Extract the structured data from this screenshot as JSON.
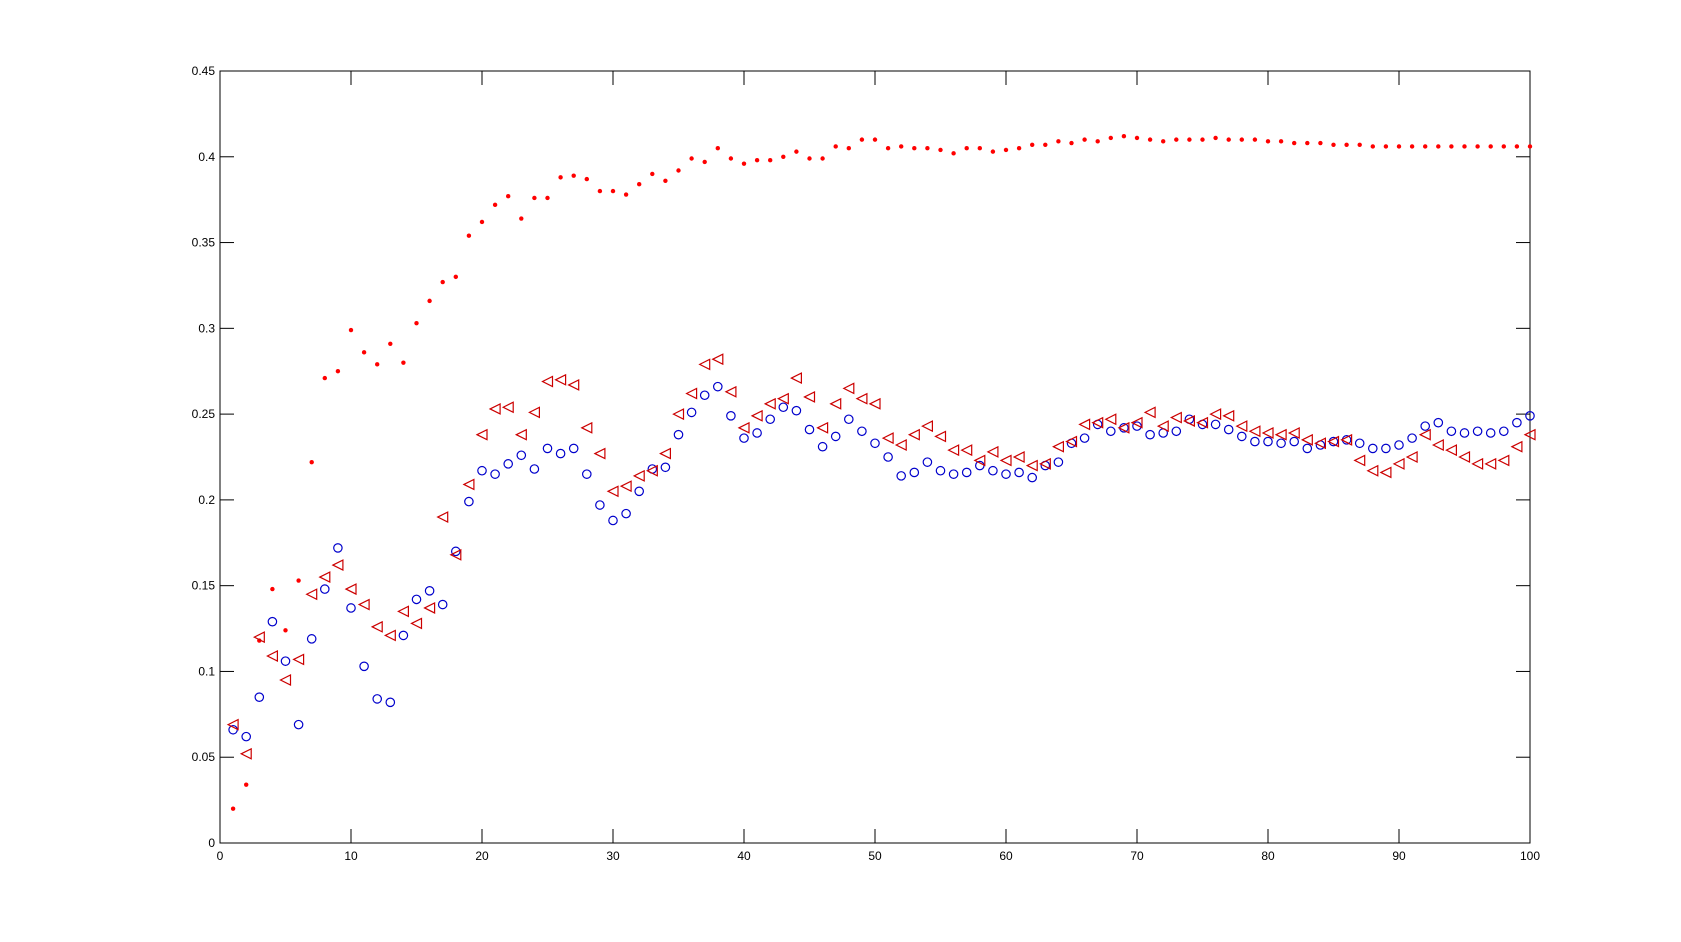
{
  "chart_data": {
    "type": "scatter",
    "title": "",
    "xlabel": "",
    "ylabel": "",
    "xlim": [
      0,
      100
    ],
    "ylim": [
      0,
      0.45
    ],
    "x_ticks": [
      0,
      10,
      20,
      30,
      40,
      50,
      60,
      70,
      80,
      90,
      100
    ],
    "x_tick_labels": [
      "0",
      "10",
      "20",
      "30",
      "40",
      "50",
      "60",
      "70",
      "80",
      "90",
      "100"
    ],
    "y_ticks": [
      0,
      0.05,
      0.1,
      0.15,
      0.2,
      0.25,
      0.3,
      0.35,
      0.4,
      0.45
    ],
    "y_tick_labels": [
      "0",
      "0.05",
      "0.1",
      "0.15",
      "0.2",
      "0.25",
      "0.3",
      "0.35",
      "0.4",
      "0.45"
    ],
    "grid": false,
    "legend": "none",
    "x": [
      1,
      2,
      3,
      4,
      5,
      6,
      7,
      8,
      9,
      10,
      11,
      12,
      13,
      14,
      15,
      16,
      17,
      18,
      19,
      20,
      21,
      22,
      23,
      24,
      25,
      26,
      27,
      28,
      29,
      30,
      31,
      32,
      33,
      34,
      35,
      36,
      37,
      38,
      39,
      40,
      41,
      42,
      43,
      44,
      45,
      46,
      47,
      48,
      49,
      50,
      51,
      52,
      53,
      54,
      55,
      56,
      57,
      58,
      59,
      60,
      61,
      62,
      63,
      64,
      65,
      66,
      67,
      68,
      69,
      70,
      71,
      72,
      73,
      74,
      75,
      76,
      77,
      78,
      79,
      80,
      81,
      82,
      83,
      84,
      85,
      86,
      87,
      88,
      89,
      90,
      91,
      92,
      93,
      94,
      95,
      96,
      97,
      98,
      99,
      100
    ],
    "series": [
      {
        "marker": "dot",
        "color": "#ff0000",
        "values": [
          0.02,
          0.034,
          0.118,
          0.148,
          0.124,
          0.153,
          0.222,
          0.271,
          0.275,
          0.299,
          0.286,
          0.279,
          0.291,
          0.28,
          0.303,
          0.316,
          0.327,
          0.33,
          0.354,
          0.362,
          0.372,
          0.377,
          0.364,
          0.376,
          0.376,
          0.388,
          0.389,
          0.387,
          0.38,
          0.38,
          0.378,
          0.384,
          0.39,
          0.386,
          0.392,
          0.399,
          0.397,
          0.405,
          0.399,
          0.396,
          0.398,
          0.398,
          0.4,
          0.403,
          0.399,
          0.399,
          0.406,
          0.405,
          0.41,
          0.41,
          0.405,
          0.406,
          0.405,
          0.405,
          0.404,
          0.402,
          0.405,
          0.405,
          0.403,
          0.404,
          0.405,
          0.407,
          0.407,
          0.409,
          0.408,
          0.41,
          0.409,
          0.411,
          0.412,
          0.411,
          0.41,
          0.409,
          0.41,
          0.41,
          0.41,
          0.411,
          0.41,
          0.41,
          0.41,
          0.409,
          0.409,
          0.408,
          0.408,
          0.408,
          0.407,
          0.407,
          0.407,
          0.406,
          0.406,
          0.406,
          0.406,
          0.406,
          0.406,
          0.406,
          0.406,
          0.406,
          0.406,
          0.406,
          0.406,
          0.406
        ]
      },
      {
        "marker": "circle",
        "color": "#0000cc",
        "values": [
          0.066,
          0.062,
          0.085,
          0.129,
          0.106,
          0.069,
          0.119,
          0.148,
          0.172,
          0.137,
          0.103,
          0.084,
          0.082,
          0.121,
          0.142,
          0.147,
          0.139,
          0.17,
          0.199,
          0.217,
          0.215,
          0.221,
          0.226,
          0.218,
          0.23,
          0.227,
          0.23,
          0.215,
          0.197,
          0.188,
          0.192,
          0.205,
          0.218,
          0.219,
          0.238,
          0.251,
          0.261,
          0.266,
          0.249,
          0.236,
          0.239,
          0.247,
          0.254,
          0.252,
          0.241,
          0.231,
          0.237,
          0.247,
          0.24,
          0.233,
          0.225,
          0.214,
          0.216,
          0.222,
          0.217,
          0.215,
          0.216,
          0.22,
          0.217,
          0.215,
          0.216,
          0.213,
          0.22,
          0.222,
          0.233,
          0.236,
          0.244,
          0.24,
          0.242,
          0.243,
          0.238,
          0.239,
          0.24,
          0.247,
          0.244,
          0.244,
          0.241,
          0.237,
          0.234,
          0.234,
          0.233,
          0.234,
          0.23,
          0.232,
          0.234,
          0.235,
          0.233,
          0.23,
          0.23,
          0.232,
          0.236,
          0.243,
          0.245,
          0.24,
          0.239,
          0.24,
          0.239,
          0.24,
          0.245,
          0.249
        ]
      },
      {
        "marker": "triangle-left",
        "color": "#cc0000",
        "values": [
          0.069,
          0.052,
          0.12,
          0.109,
          0.095,
          0.107,
          0.145,
          0.155,
          0.162,
          0.148,
          0.139,
          0.126,
          0.121,
          0.135,
          0.128,
          0.137,
          0.19,
          0.168,
          0.209,
          0.238,
          0.253,
          0.254,
          0.238,
          0.251,
          0.269,
          0.27,
          0.267,
          0.242,
          0.227,
          0.205,
          0.208,
          0.214,
          0.217,
          0.227,
          0.25,
          0.262,
          0.279,
          0.282,
          0.263,
          0.242,
          0.249,
          0.256,
          0.259,
          0.271,
          0.26,
          0.242,
          0.256,
          0.265,
          0.259,
          0.256,
          0.236,
          0.232,
          0.238,
          0.243,
          0.237,
          0.229,
          0.229,
          0.223,
          0.228,
          0.223,
          0.225,
          0.22,
          0.221,
          0.231,
          0.234,
          0.244,
          0.245,
          0.247,
          0.242,
          0.245,
          0.251,
          0.243,
          0.248,
          0.246,
          0.245,
          0.25,
          0.249,
          0.243,
          0.24,
          0.239,
          0.238,
          0.239,
          0.235,
          0.233,
          0.234,
          0.235,
          0.223,
          0.217,
          0.216,
          0.221,
          0.225,
          0.238,
          0.232,
          0.229,
          0.225,
          0.221,
          0.221,
          0.223,
          0.231,
          0.238
        ]
      }
    ]
  }
}
